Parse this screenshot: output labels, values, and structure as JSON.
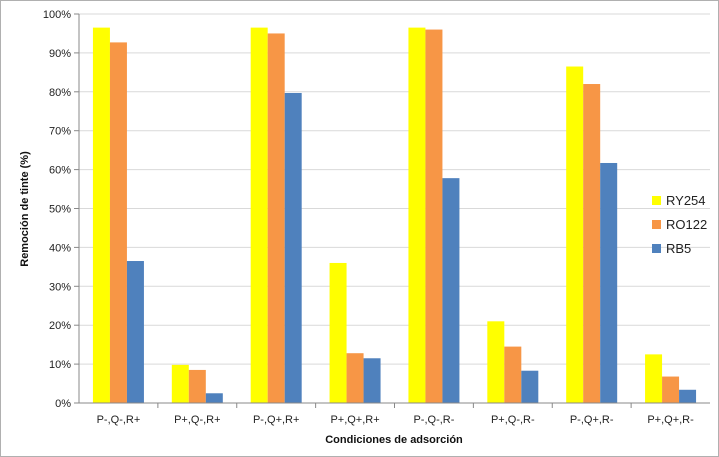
{
  "chart_data": {
    "type": "bar",
    "title": "",
    "xlabel": "Condiciones de adsorción",
    "ylabel": "Remoción de tinte (%)",
    "ylim": [
      0,
      100
    ],
    "yticks": [
      "0%",
      "10%",
      "20%",
      "30%",
      "40%",
      "50%",
      "60%",
      "70%",
      "80%",
      "90%",
      "100%"
    ],
    "grid": "horizontal",
    "legend_position": "right",
    "categories": [
      "P-,Q-,R+",
      "P+,Q-,R+",
      "P-,Q+,R+",
      "P+,Q+,R+",
      "P-,Q-,R-",
      "P+,Q-,R-",
      "P-,Q+,R-",
      "P+,Q+,R-"
    ],
    "series": [
      {
        "name": "RY254",
        "color": "#ffff00",
        "values": [
          96.5,
          9.8,
          96.5,
          36,
          96.5,
          21,
          86.5,
          12.5
        ]
      },
      {
        "name": "RO122",
        "color": "#f79646",
        "values": [
          92.7,
          8.5,
          95,
          12.8,
          96,
          14.5,
          82,
          6.8
        ]
      },
      {
        "name": "RB5",
        "color": "#4f81bd",
        "values": [
          36.5,
          2.5,
          79.7,
          11.5,
          57.8,
          8.3,
          61.7,
          3.4
        ]
      }
    ]
  }
}
